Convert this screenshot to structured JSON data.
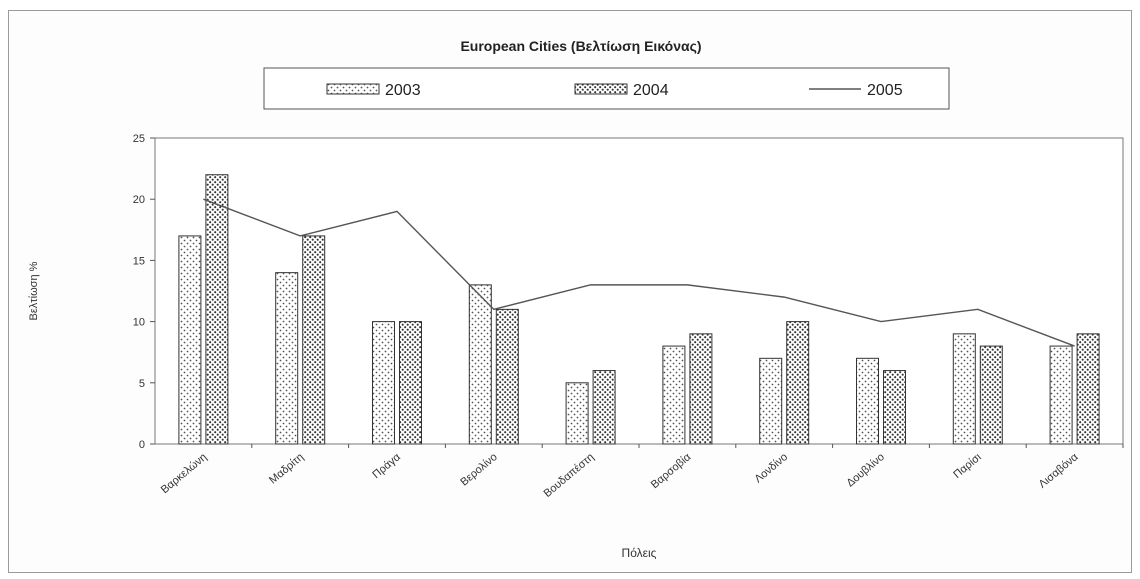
{
  "chart_data": {
    "type": "bar",
    "title": "European Cities (Βελτίωση Εικόνας)",
    "xlabel": "Πόλεις",
    "ylabel": "Βελτίωση %",
    "ylim": [
      0,
      25
    ],
    "yticks": [
      "0",
      "5",
      "10",
      "15",
      "20",
      "25"
    ],
    "grid": false,
    "legend_position": "top",
    "categories": [
      "Βαρκελώνη",
      "Μαδρίτη",
      "Πράγα",
      "Βερολίνο",
      "Βουδαπέστη",
      "Βαρσοβία",
      "Λονδίνο",
      "Δουβλίνο",
      "Παρίσι",
      "Λισαβόνα"
    ],
    "series": [
      {
        "name": "2003",
        "kind": "bar",
        "pattern": "dots-sparse",
        "values": [
          17,
          14,
          10,
          13,
          5,
          8,
          7,
          7,
          9,
          8
        ]
      },
      {
        "name": "2004",
        "kind": "bar",
        "pattern": "dots-dense",
        "values": [
          22,
          17,
          10,
          11,
          6,
          9,
          10,
          6,
          8,
          9
        ]
      },
      {
        "name": "2005",
        "kind": "line",
        "values": [
          20,
          17,
          19,
          11,
          13,
          13,
          12,
          10,
          11,
          8
        ]
      }
    ],
    "colors": {
      "bar_fill": "#ffffff",
      "bar_dots": "#444444",
      "bar_outline": "#333333",
      "line": "#555555",
      "axis": "#555555",
      "text": "#222222"
    }
  }
}
